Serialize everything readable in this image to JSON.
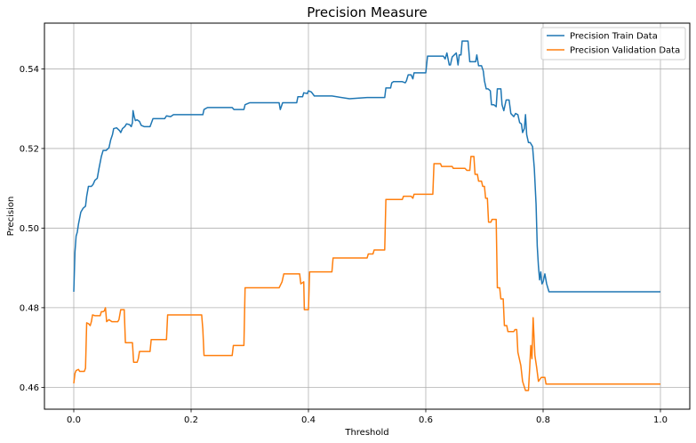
{
  "chart_data": {
    "type": "line",
    "title": "Precision Measure",
    "xlabel": "Threshold",
    "ylabel": "Precision",
    "xlim": [
      -0.05,
      1.05
    ],
    "ylim": [
      0.4545,
      0.5515
    ],
    "xticks": [
      0.0,
      0.2,
      0.4,
      0.6,
      0.8,
      1.0
    ],
    "xtick_labels": [
      "0.0",
      "0.2",
      "0.4",
      "0.6",
      "0.8",
      "1.0"
    ],
    "yticks": [
      0.46,
      0.48,
      0.5,
      0.52,
      0.54
    ],
    "ytick_labels": [
      "0.46",
      "0.48",
      "0.50",
      "0.52",
      "0.54"
    ],
    "grid": true,
    "legend_position": "top-right",
    "series": [
      {
        "name": "Precision Train Data",
        "color": "#1f77b4",
        "points": [
          [
            0.0,
            0.484
          ],
          [
            0.002,
            0.494
          ],
          [
            0.004,
            0.498
          ],
          [
            0.006,
            0.499
          ],
          [
            0.008,
            0.501
          ],
          [
            0.012,
            0.504
          ],
          [
            0.016,
            0.505
          ],
          [
            0.02,
            0.5055
          ],
          [
            0.022,
            0.508
          ],
          [
            0.025,
            0.5105
          ],
          [
            0.03,
            0.5105
          ],
          [
            0.033,
            0.511
          ],
          [
            0.036,
            0.512
          ],
          [
            0.04,
            0.5125
          ],
          [
            0.043,
            0.515
          ],
          [
            0.047,
            0.518
          ],
          [
            0.05,
            0.5195
          ],
          [
            0.055,
            0.5195
          ],
          [
            0.06,
            0.5202
          ],
          [
            0.063,
            0.5222
          ],
          [
            0.066,
            0.5235
          ],
          [
            0.068,
            0.525
          ],
          [
            0.073,
            0.5252
          ],
          [
            0.078,
            0.5245
          ],
          [
            0.08,
            0.524
          ],
          [
            0.083,
            0.525
          ],
          [
            0.087,
            0.5255
          ],
          [
            0.09,
            0.5262
          ],
          [
            0.095,
            0.526
          ],
          [
            0.098,
            0.5255
          ],
          [
            0.1,
            0.5265
          ],
          [
            0.101,
            0.5295
          ],
          [
            0.103,
            0.528
          ],
          [
            0.105,
            0.527
          ],
          [
            0.108,
            0.5272
          ],
          [
            0.112,
            0.5268
          ],
          [
            0.115,
            0.5258
          ],
          [
            0.12,
            0.5255
          ],
          [
            0.13,
            0.5255
          ],
          [
            0.135,
            0.5275
          ],
          [
            0.145,
            0.5275
          ],
          [
            0.155,
            0.5275
          ],
          [
            0.158,
            0.5282
          ],
          [
            0.165,
            0.528
          ],
          [
            0.17,
            0.5285
          ],
          [
            0.2,
            0.5285
          ],
          [
            0.22,
            0.5285
          ],
          [
            0.222,
            0.5298
          ],
          [
            0.228,
            0.5303
          ],
          [
            0.27,
            0.5303
          ],
          [
            0.273,
            0.5298
          ],
          [
            0.29,
            0.5298
          ],
          [
            0.292,
            0.531
          ],
          [
            0.3,
            0.5315
          ],
          [
            0.35,
            0.5315
          ],
          [
            0.352,
            0.5298
          ],
          [
            0.356,
            0.5315
          ],
          [
            0.38,
            0.5315
          ],
          [
            0.382,
            0.533
          ],
          [
            0.39,
            0.533
          ],
          [
            0.392,
            0.534
          ],
          [
            0.398,
            0.5338
          ],
          [
            0.4,
            0.5345
          ],
          [
            0.405,
            0.5342
          ],
          [
            0.41,
            0.5332
          ],
          [
            0.44,
            0.5332
          ],
          [
            0.47,
            0.5325
          ],
          [
            0.5,
            0.5328
          ],
          [
            0.52,
            0.5328
          ],
          [
            0.53,
            0.5328
          ],
          [
            0.532,
            0.5352
          ],
          [
            0.54,
            0.5352
          ],
          [
            0.542,
            0.5365
          ],
          [
            0.545,
            0.5368
          ],
          [
            0.56,
            0.5368
          ],
          [
            0.565,
            0.5365
          ],
          [
            0.567,
            0.537
          ],
          [
            0.57,
            0.5385
          ],
          [
            0.575,
            0.5385
          ],
          [
            0.578,
            0.5375
          ],
          [
            0.58,
            0.539
          ],
          [
            0.6,
            0.539
          ],
          [
            0.603,
            0.5432
          ],
          [
            0.63,
            0.5432
          ],
          [
            0.633,
            0.5425
          ],
          [
            0.636,
            0.544
          ],
          [
            0.64,
            0.541
          ],
          [
            0.642,
            0.541
          ],
          [
            0.645,
            0.543
          ],
          [
            0.652,
            0.544
          ],
          [
            0.655,
            0.541
          ],
          [
            0.657,
            0.5435
          ],
          [
            0.66,
            0.5435
          ],
          [
            0.662,
            0.547
          ],
          [
            0.672,
            0.547
          ],
          [
            0.675,
            0.5418
          ],
          [
            0.685,
            0.5418
          ],
          [
            0.687,
            0.5435
          ],
          [
            0.69,
            0.5408
          ],
          [
            0.695,
            0.5408
          ],
          [
            0.698,
            0.5395
          ],
          [
            0.7,
            0.537
          ],
          [
            0.703,
            0.535
          ],
          [
            0.706,
            0.535
          ],
          [
            0.71,
            0.5345
          ],
          [
            0.712,
            0.531
          ],
          [
            0.716,
            0.531
          ],
          [
            0.72,
            0.5305
          ],
          [
            0.722,
            0.535
          ],
          [
            0.728,
            0.535
          ],
          [
            0.73,
            0.531
          ],
          [
            0.733,
            0.5295
          ],
          [
            0.737,
            0.5322
          ],
          [
            0.742,
            0.5322
          ],
          [
            0.745,
            0.5288
          ],
          [
            0.75,
            0.528
          ],
          [
            0.753,
            0.5288
          ],
          [
            0.757,
            0.5285
          ],
          [
            0.76,
            0.5265
          ],
          [
            0.763,
            0.5262
          ],
          [
            0.765,
            0.524
          ],
          [
            0.768,
            0.525
          ],
          [
            0.77,
            0.5285
          ],
          [
            0.772,
            0.5235
          ],
          [
            0.775,
            0.5215
          ],
          [
            0.778,
            0.5215
          ],
          [
            0.782,
            0.5205
          ],
          [
            0.785,
            0.515
          ],
          [
            0.788,
            0.506
          ],
          [
            0.79,
            0.4955
          ],
          [
            0.792,
            0.4905
          ],
          [
            0.794,
            0.487
          ],
          [
            0.796,
            0.489
          ],
          [
            0.798,
            0.486
          ],
          [
            0.8,
            0.4865
          ],
          [
            0.803,
            0.4885
          ],
          [
            0.806,
            0.486
          ],
          [
            0.81,
            0.484
          ],
          [
            0.85,
            0.484
          ],
          [
            0.9,
            0.484
          ],
          [
            1.0,
            0.484
          ]
        ]
      },
      {
        "name": "Precision Validation Data",
        "color": "#ff7f0e",
        "points": [
          [
            0.0,
            0.461
          ],
          [
            0.002,
            0.4635
          ],
          [
            0.004,
            0.4642
          ],
          [
            0.008,
            0.4645
          ],
          [
            0.01,
            0.464
          ],
          [
            0.018,
            0.464
          ],
          [
            0.02,
            0.4648
          ],
          [
            0.022,
            0.4762
          ],
          [
            0.025,
            0.476
          ],
          [
            0.028,
            0.4755
          ],
          [
            0.03,
            0.4765
          ],
          [
            0.032,
            0.4782
          ],
          [
            0.036,
            0.478
          ],
          [
            0.045,
            0.478
          ],
          [
            0.047,
            0.479
          ],
          [
            0.05,
            0.479
          ],
          [
            0.052,
            0.4792
          ],
          [
            0.054,
            0.48
          ],
          [
            0.056,
            0.4765
          ],
          [
            0.06,
            0.477
          ],
          [
            0.065,
            0.4765
          ],
          [
            0.075,
            0.4765
          ],
          [
            0.077,
            0.477
          ],
          [
            0.08,
            0.4795
          ],
          [
            0.086,
            0.4795
          ],
          [
            0.088,
            0.4712
          ],
          [
            0.1,
            0.4712
          ],
          [
            0.102,
            0.4663
          ],
          [
            0.108,
            0.4663
          ],
          [
            0.11,
            0.4672
          ],
          [
            0.112,
            0.469
          ],
          [
            0.13,
            0.469
          ],
          [
            0.132,
            0.472
          ],
          [
            0.158,
            0.472
          ],
          [
            0.16,
            0.4782
          ],
          [
            0.19,
            0.4782
          ],
          [
            0.218,
            0.4782
          ],
          [
            0.22,
            0.4745
          ],
          [
            0.222,
            0.468
          ],
          [
            0.27,
            0.468
          ],
          [
            0.272,
            0.4705
          ],
          [
            0.29,
            0.4705
          ],
          [
            0.292,
            0.485
          ],
          [
            0.35,
            0.485
          ],
          [
            0.355,
            0.4865
          ],
          [
            0.358,
            0.4885
          ],
          [
            0.385,
            0.4885
          ],
          [
            0.387,
            0.486
          ],
          [
            0.392,
            0.4865
          ],
          [
            0.393,
            0.4795
          ],
          [
            0.4,
            0.4795
          ],
          [
            0.402,
            0.489
          ],
          [
            0.44,
            0.489
          ],
          [
            0.442,
            0.4925
          ],
          [
            0.5,
            0.4925
          ],
          [
            0.502,
            0.4935
          ],
          [
            0.51,
            0.4935
          ],
          [
            0.512,
            0.4945
          ],
          [
            0.53,
            0.4945
          ],
          [
            0.532,
            0.5072
          ],
          [
            0.56,
            0.5072
          ],
          [
            0.562,
            0.508
          ],
          [
            0.575,
            0.508
          ],
          [
            0.578,
            0.5075
          ],
          [
            0.58,
            0.5085
          ],
          [
            0.612,
            0.5085
          ],
          [
            0.614,
            0.5162
          ],
          [
            0.625,
            0.5162
          ],
          [
            0.627,
            0.5155
          ],
          [
            0.645,
            0.5155
          ],
          [
            0.647,
            0.515
          ],
          [
            0.667,
            0.515
          ],
          [
            0.67,
            0.5145
          ],
          [
            0.675,
            0.5145
          ],
          [
            0.677,
            0.518
          ],
          [
            0.682,
            0.518
          ],
          [
            0.684,
            0.5135
          ],
          [
            0.688,
            0.5135
          ],
          [
            0.69,
            0.5118
          ],
          [
            0.695,
            0.5118
          ],
          [
            0.697,
            0.5105
          ],
          [
            0.7,
            0.5105
          ],
          [
            0.702,
            0.5075
          ],
          [
            0.705,
            0.5075
          ],
          [
            0.707,
            0.5015
          ],
          [
            0.711,
            0.5015
          ],
          [
            0.713,
            0.5022
          ],
          [
            0.72,
            0.5022
          ],
          [
            0.722,
            0.485
          ],
          [
            0.726,
            0.485
          ],
          [
            0.728,
            0.4822
          ],
          [
            0.732,
            0.4822
          ],
          [
            0.734,
            0.4755
          ],
          [
            0.738,
            0.4755
          ],
          [
            0.74,
            0.474
          ],
          [
            0.75,
            0.474
          ],
          [
            0.752,
            0.4745
          ],
          [
            0.755,
            0.4745
          ],
          [
            0.757,
            0.4688
          ],
          [
            0.762,
            0.4655
          ],
          [
            0.765,
            0.4615
          ],
          [
            0.77,
            0.4592
          ],
          [
            0.775,
            0.4592
          ],
          [
            0.777,
            0.4645
          ],
          [
            0.779,
            0.4705
          ],
          [
            0.781,
            0.4672
          ],
          [
            0.783,
            0.4775
          ],
          [
            0.786,
            0.468
          ],
          [
            0.789,
            0.465
          ],
          [
            0.792,
            0.4615
          ],
          [
            0.797,
            0.4625
          ],
          [
            0.803,
            0.4625
          ],
          [
            0.805,
            0.4608
          ],
          [
            0.85,
            0.4608
          ],
          [
            0.9,
            0.4608
          ],
          [
            1.0,
            0.4608
          ]
        ]
      }
    ]
  }
}
